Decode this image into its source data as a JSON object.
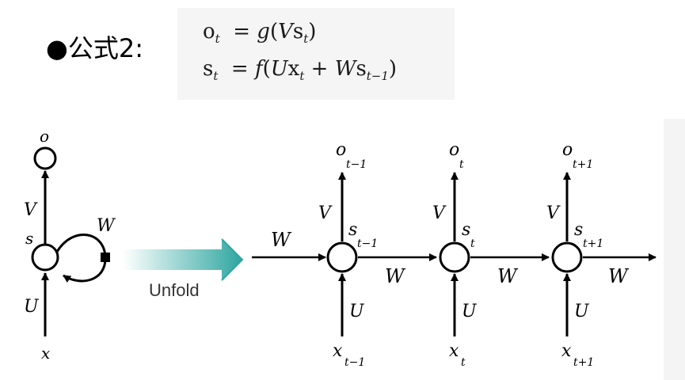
{
  "heading": {
    "bullet": "●",
    "text": "公式2:"
  },
  "formulas": {
    "row1": {
      "lhs": "o",
      "lhs_sub": "t",
      "rhs_func": "g",
      "rhs_var": "V",
      "rhs_s": "s",
      "rhs_sub": "t"
    },
    "row2": {
      "lhs": "s",
      "lhs_sub": "t",
      "rhs_func": "f",
      "u": "U",
      "x": "x",
      "x_sub": "t",
      "w": "W",
      "s": "s",
      "s_sub": "t−1"
    }
  },
  "folded": {
    "o": "o",
    "v": "V",
    "s": "s",
    "w": "W",
    "u": "U",
    "x": "x"
  },
  "unfold_label": "Unfold",
  "unfolded": {
    "w_in": "W",
    "steps": [
      {
        "o": "o",
        "o_sub": "t−1",
        "v": "V",
        "s": "s",
        "s_sub": "t−1",
        "u": "U",
        "x": "x",
        "x_sub": "t−1",
        "w_out": "W"
      },
      {
        "o": "o",
        "o_sub": "t",
        "v": "V",
        "s": "s",
        "s_sub": "t",
        "u": "U",
        "x": "x",
        "x_sub": "t",
        "w_out": "W"
      },
      {
        "o": "o",
        "o_sub": "t+1",
        "v": "V",
        "s": "s",
        "s_sub": "t+1",
        "u": "U",
        "x": "x",
        "x_sub": "t+1",
        "w_out": "W"
      }
    ]
  }
}
